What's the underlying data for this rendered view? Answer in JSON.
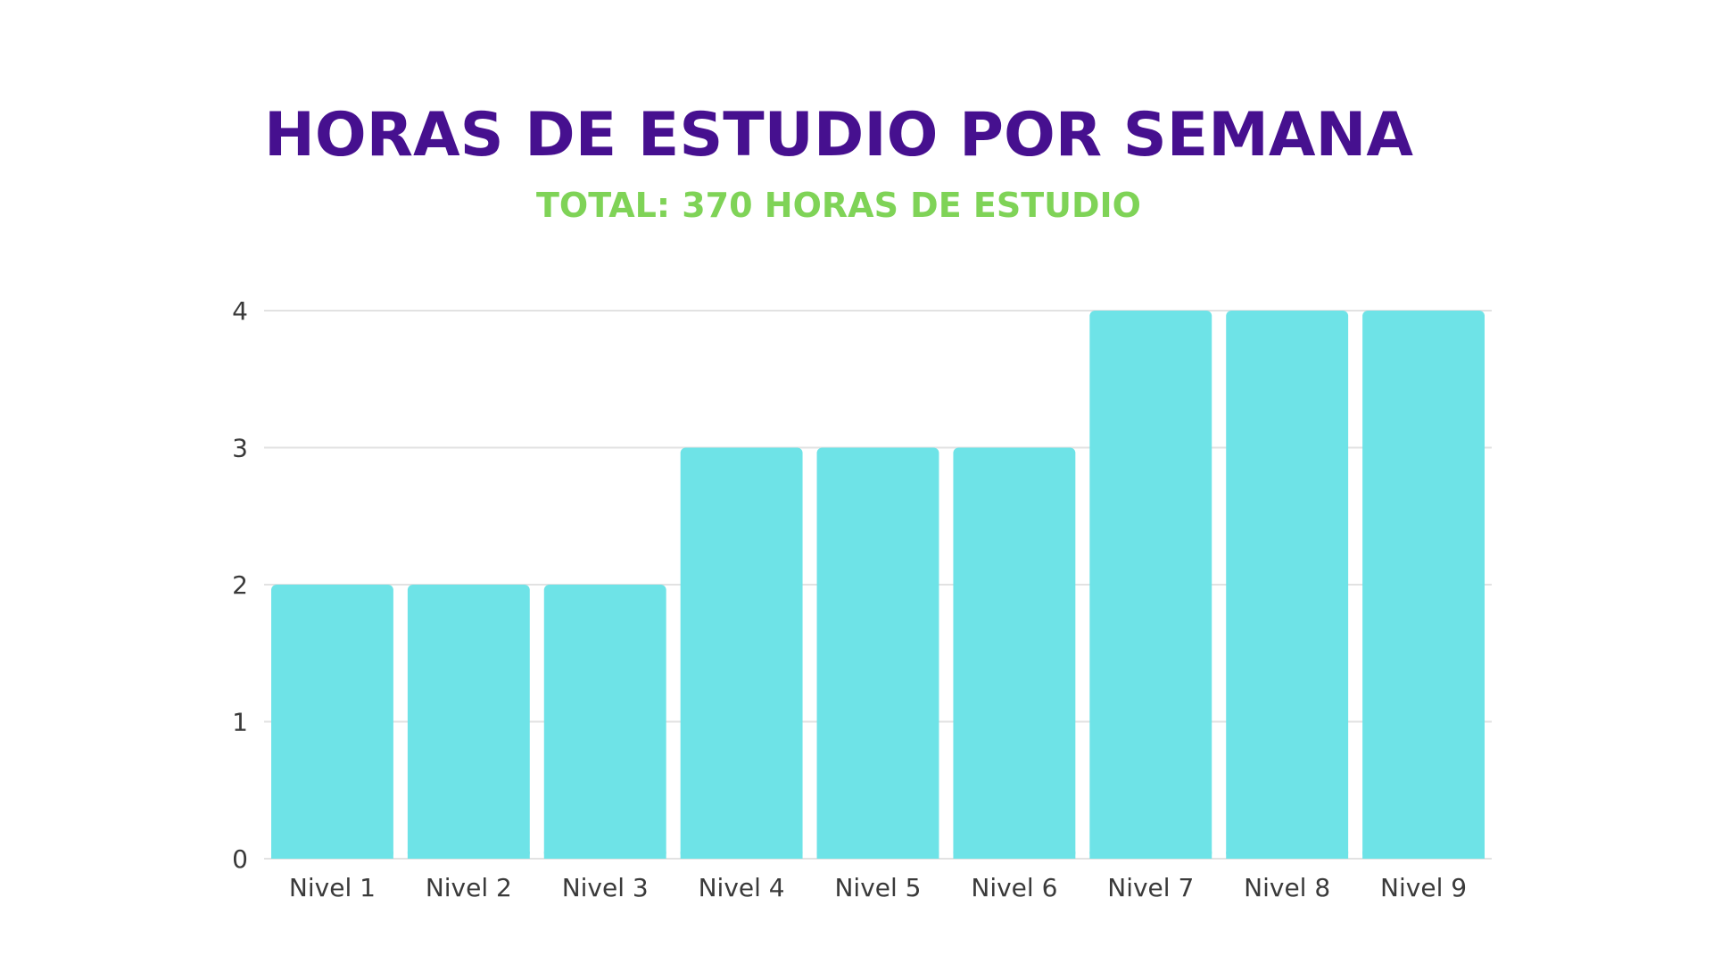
{
  "title": "HORAS DE ESTUDIO POR SEMANA",
  "subtitle": "TOTAL: 370 HORAS DE ESTUDIO",
  "colors": {
    "title": "#46108f",
    "subtitle": "#7fd357",
    "bar": "#6ee3e7",
    "grid": "#e2e2e2"
  },
  "chart_data": {
    "type": "bar",
    "categories": [
      "Nivel 1",
      "Nivel 2",
      "Nivel 3",
      "Nivel 4",
      "Nivel 5",
      "Nivel 6",
      "Nivel 7",
      "Nivel 8",
      "Nivel 9"
    ],
    "values": [
      2,
      2,
      2,
      3,
      3,
      3,
      4,
      4,
      4
    ],
    "ylim": [
      0,
      4
    ],
    "yticks": [
      "0",
      "1",
      "2",
      "3",
      "4"
    ],
    "grid": true,
    "legend": "none",
    "xlabel": "",
    "ylabel": ""
  }
}
